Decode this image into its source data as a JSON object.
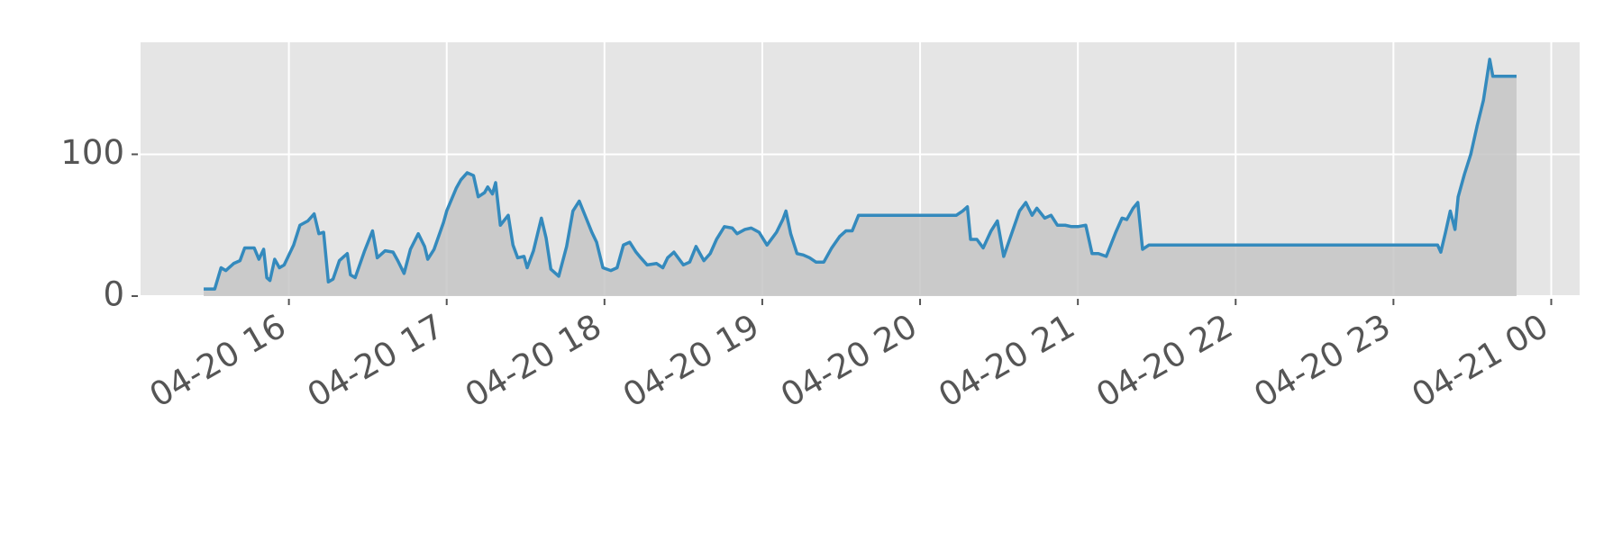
{
  "chart_data": {
    "type": "area",
    "x": [
      15.46,
      15.53,
      15.57,
      15.6,
      15.65,
      15.69,
      15.72,
      15.78,
      15.81,
      15.84,
      15.86,
      15.88,
      15.91,
      15.94,
      15.97,
      16.03,
      16.07,
      16.12,
      16.16,
      16.19,
      16.22,
      16.25,
      16.28,
      16.32,
      16.37,
      16.39,
      16.42,
      16.48,
      16.53,
      16.56,
      16.61,
      16.66,
      16.69,
      16.73,
      16.77,
      16.82,
      16.86,
      16.88,
      16.92,
      16.98,
      17.0,
      17.06,
      17.09,
      17.13,
      17.17,
      17.2,
      17.24,
      17.26,
      17.29,
      17.31,
      17.34,
      17.39,
      17.42,
      17.45,
      17.49,
      17.51,
      17.55,
      17.6,
      17.63,
      17.66,
      17.71,
      17.76,
      17.8,
      17.84,
      17.88,
      17.92,
      17.95,
      17.99,
      18.04,
      18.08,
      18.12,
      18.16,
      18.2,
      18.23,
      18.27,
      18.33,
      18.37,
      18.4,
      18.44,
      18.5,
      18.54,
      18.58,
      18.63,
      18.67,
      18.71,
      18.76,
      18.81,
      18.84,
      18.89,
      18.93,
      18.98,
      19.03,
      19.09,
      19.13,
      19.15,
      19.18,
      19.22,
      19.26,
      19.3,
      19.34,
      19.39,
      19.44,
      19.49,
      19.53,
      19.57,
      19.61,
      20.23,
      20.27,
      20.3,
      20.32,
      20.36,
      20.4,
      20.45,
      20.49,
      20.53,
      20.58,
      20.63,
      20.67,
      20.71,
      20.74,
      20.79,
      20.83,
      20.87,
      20.92,
      20.96,
      21.0,
      21.05,
      21.09,
      21.13,
      21.18,
      21.24,
      21.28,
      21.31,
      21.35,
      21.38,
      21.41,
      21.45,
      23.28,
      23.3,
      23.33,
      23.36,
      23.39,
      23.41,
      23.45,
      23.49,
      23.53,
      23.57,
      23.61,
      23.63,
      23.78
    ],
    "series": [
      {
        "color": "#348ABD",
        "fill_color": "#c5c5c5",
        "values": [
          5,
          5,
          20,
          18,
          23,
          25,
          34,
          34,
          26,
          33,
          13,
          11,
          26,
          20,
          22,
          36,
          50,
          53,
          58,
          44,
          45,
          10,
          12,
          25,
          30,
          15,
          13,
          32,
          46,
          27,
          32,
          31,
          25,
          16,
          33,
          44,
          35,
          26,
          33,
          52,
          60,
          76,
          82,
          87,
          85,
          70,
          73,
          77,
          72,
          80,
          50,
          57,
          36,
          27,
          28,
          20,
          32,
          55,
          41,
          19,
          14,
          35,
          60,
          67,
          56,
          45,
          38,
          20,
          18,
          20,
          36,
          38,
          31,
          27,
          22,
          23,
          20,
          27,
          31,
          22,
          24,
          35,
          25,
          30,
          40,
          49,
          48,
          44,
          47,
          48,
          45,
          36,
          45,
          54,
          60,
          44,
          30,
          29,
          27,
          24,
          24,
          34,
          42,
          46,
          46,
          57,
          57,
          60,
          63,
          40,
          40,
          34,
          46,
          53,
          28,
          44,
          60,
          66,
          57,
          62,
          55,
          57,
          50,
          50,
          49,
          49,
          50,
          30,
          30,
          28,
          45,
          55,
          54,
          62,
          66,
          33,
          36,
          36,
          31,
          45,
          60,
          47,
          70,
          86,
          100,
          120,
          138,
          167,
          155,
          155
        ]
      }
    ],
    "xlim": [
      15.06,
      24.18
    ],
    "xticks": [
      {
        "value": 16,
        "label": "04-20 16"
      },
      {
        "value": 17,
        "label": "04-20 17"
      },
      {
        "value": 18,
        "label": "04-20 18"
      },
      {
        "value": 19,
        "label": "04-20 19"
      },
      {
        "value": 20,
        "label": "04-20 20"
      },
      {
        "value": 21,
        "label": "04-20 21"
      },
      {
        "value": 22,
        "label": "04-20 22"
      },
      {
        "value": 23,
        "label": "04-20 23"
      },
      {
        "value": 24,
        "label": "04-21 00"
      }
    ],
    "ylim": [
      0,
      179
    ],
    "yticks": [
      0,
      100
    ],
    "grid": true
  }
}
